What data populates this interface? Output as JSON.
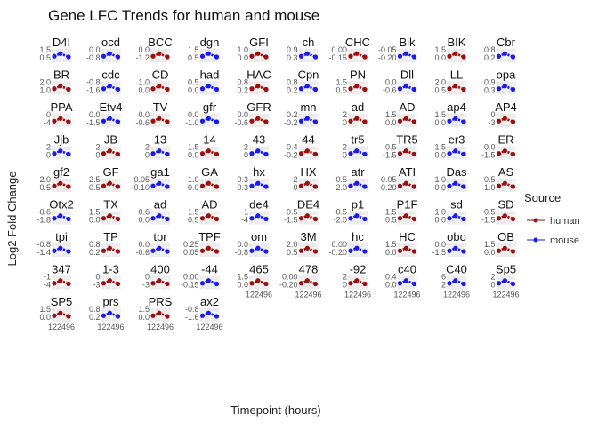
{
  "chart_data": {
    "type": "line",
    "title": "Gene LFC Trends for human and mouse",
    "xlabel": "Timepoint (hours)",
    "ylabel": "Log2 Fold Change",
    "legend": {
      "title": "Source",
      "placement": "right",
      "entries": [
        {
          "name": "human",
          "color": "#9b0f0f"
        },
        {
          "name": "mouse",
          "color": "#1a1aee"
        }
      ]
    },
    "x_ticks": [
      "12",
      "24",
      "96"
    ],
    "panels": [
      {
        "label": "D4I",
        "source": "mouse",
        "y_ticks": [
          "1.5",
          "0.5"
        ]
      },
      {
        "label": "ocd",
        "source": "mouse",
        "y_ticks": [
          "0.0",
          "-0.8"
        ]
      },
      {
        "label": "BCC",
        "source": "human",
        "y_ticks": [
          "0.0",
          "-1.2"
        ]
      },
      {
        "label": "dgn",
        "source": "mouse",
        "y_ticks": [
          "1.5",
          "0.5"
        ]
      },
      {
        "label": "GFI",
        "source": "human",
        "y_ticks": [
          "1.0",
          "0.0"
        ]
      },
      {
        "label": "ch",
        "source": "mouse",
        "y_ticks": [
          "0.9",
          "0.3"
        ]
      },
      {
        "label": "CHC",
        "source": "human",
        "y_ticks": [
          "0.00",
          "-0.15"
        ]
      },
      {
        "label": "Bik",
        "source": "mouse",
        "y_ticks": [
          "-0.05",
          "-0.20"
        ]
      },
      {
        "label": "BIK",
        "source": "human",
        "y_ticks": [
          "1.5",
          "0.0"
        ]
      },
      {
        "label": "Cbr",
        "source": "mouse",
        "y_ticks": [
          "0.8",
          "0.2"
        ]
      },
      {
        "label": "BR",
        "source": "human",
        "y_ticks": [
          "2.0",
          "1.0"
        ]
      },
      {
        "label": "cdc",
        "source": "mouse",
        "y_ticks": [
          "-0.8",
          "-1.6"
        ]
      },
      {
        "label": "CD",
        "source": "human",
        "y_ticks": [
          "1.0",
          "0.0"
        ]
      },
      {
        "label": "had",
        "source": "mouse",
        "y_ticks": [
          "0.5",
          "0.0"
        ]
      },
      {
        "label": "HAC",
        "source": "human",
        "y_ticks": [
          "0.8",
          "0.2"
        ]
      },
      {
        "label": "Cpn",
        "source": "mouse",
        "y_ticks": [
          "0.8",
          "0.2"
        ]
      },
      {
        "label": "PN",
        "source": "human",
        "y_ticks": [
          "1.5",
          "0.5"
        ]
      },
      {
        "label": "Dll",
        "source": "mouse",
        "y_ticks": [
          "0.0",
          "-0.6"
        ]
      },
      {
        "label": "LL",
        "source": "human",
        "y_ticks": [
          "2.0",
          "0.5"
        ]
      },
      {
        "label": "opa",
        "source": "mouse",
        "y_ticks": [
          "0.9",
          "0.3"
        ]
      },
      {
        "label": "PPA",
        "source": "human",
        "y_ticks": [
          "0",
          "-4"
        ]
      },
      {
        "label": "Etv4",
        "source": "mouse",
        "y_ticks": [
          "0.0",
          "-1.5"
        ]
      },
      {
        "label": "TV",
        "source": "human",
        "y_ticks": [
          "0.0",
          "-0.6"
        ]
      },
      {
        "label": "gfr",
        "source": "mouse",
        "y_ticks": [
          "0.0",
          "-1.0"
        ]
      },
      {
        "label": "GFR",
        "source": "human",
        "y_ticks": [
          "0.0",
          "-0.6"
        ]
      },
      {
        "label": "mn",
        "source": "mouse",
        "y_ticks": [
          "0.2",
          "-0.2"
        ]
      },
      {
        "label": "ad",
        "source": "human",
        "y_ticks": [
          "2",
          "0"
        ]
      },
      {
        "label": "AD",
        "source": "human",
        "y_ticks": [
          "1.5",
          "0.0"
        ]
      },
      {
        "label": "ap4",
        "source": "mouse",
        "y_ticks": [
          "1.5",
          "0.0"
        ]
      },
      {
        "label": "AP4",
        "source": "human",
        "y_ticks": [
          "0",
          "-3"
        ]
      },
      {
        "label": "Jjb",
        "source": "mouse",
        "y_ticks": [
          "2",
          "0"
        ]
      },
      {
        "label": "JB",
        "source": "human",
        "y_ticks": [
          "2",
          "0"
        ]
      },
      {
        "label": "13",
        "source": "mouse",
        "y_ticks": [
          "2",
          "0"
        ]
      },
      {
        "label": "14",
        "source": "human",
        "y_ticks": [
          "1.5",
          "0.0"
        ]
      },
      {
        "label": "43",
        "source": "mouse",
        "y_ticks": [
          "2",
          "0"
        ]
      },
      {
        "label": "44",
        "source": "human",
        "y_ticks": [
          "0.4",
          "-0.2"
        ]
      },
      {
        "label": "tr5",
        "source": "mouse",
        "y_ticks": [
          "2",
          "0"
        ]
      },
      {
        "label": "TR5",
        "source": "human",
        "y_ticks": [
          "0.5",
          "-1.5"
        ]
      },
      {
        "label": "er3",
        "source": "mouse",
        "y_ticks": [
          "1.5",
          "0.0"
        ]
      },
      {
        "label": "ER",
        "source": "human",
        "y_ticks": [
          "0.0",
          "-1.5"
        ]
      },
      {
        "label": "gf2",
        "source": "human",
        "y_ticks": [
          "2.0",
          "0.5"
        ]
      },
      {
        "label": "GF",
        "source": "human",
        "y_ticks": [
          "2.5",
          "0.5"
        ]
      },
      {
        "label": "ga1",
        "source": "mouse",
        "y_ticks": [
          "0.05",
          "-0.10"
        ]
      },
      {
        "label": "GA",
        "source": "human",
        "y_ticks": [
          "1.0",
          "0.0"
        ]
      },
      {
        "label": "hx",
        "source": "mouse",
        "y_ticks": [
          "0.3",
          "-0.3"
        ]
      },
      {
        "label": "HX",
        "source": "human",
        "y_ticks": [
          "2",
          "0"
        ]
      },
      {
        "label": "atr",
        "source": "mouse",
        "y_ticks": [
          "-0.5",
          "-2.0"
        ]
      },
      {
        "label": "ATI",
        "source": "human",
        "y_ticks": [
          "0.05",
          "-0.20"
        ]
      },
      {
        "label": "Das",
        "source": "mouse",
        "y_ticks": [
          "1.0",
          "0.0"
        ]
      },
      {
        "label": "AS",
        "source": "human",
        "y_ticks": [
          "0.5",
          "-1.0"
        ]
      },
      {
        "label": "Otx2",
        "source": "mouse",
        "y_ticks": [
          "-0.6",
          "-1.8"
        ]
      },
      {
        "label": "TX",
        "source": "human",
        "y_ticks": [
          "1.5",
          "0.0"
        ]
      },
      {
        "label": "ad",
        "source": "mouse",
        "y_ticks": [
          "0.6",
          "0.0"
        ]
      },
      {
        "label": "AD",
        "source": "human",
        "y_ticks": [
          "1.5",
          "0.5"
        ]
      },
      {
        "label": "de4",
        "source": "mouse",
        "y_ticks": [
          "-1",
          "-4"
        ]
      },
      {
        "label": "DE4",
        "source": "human",
        "y_ticks": [
          "0.5",
          "-1.5"
        ]
      },
      {
        "label": "p1",
        "source": "mouse",
        "y_ticks": [
          "-0.5",
          "-2.0"
        ]
      },
      {
        "label": "P1F",
        "source": "human",
        "y_ticks": [
          "1.5",
          "0.5"
        ]
      },
      {
        "label": "sd",
        "source": "mouse",
        "y_ticks": [
          "1.0",
          "0.0"
        ]
      },
      {
        "label": "SD",
        "source": "human",
        "y_ticks": [
          "0.5",
          "-1.5"
        ]
      },
      {
        "label": "tpi",
        "source": "mouse",
        "y_ticks": [
          "-0.8",
          "-1.4"
        ]
      },
      {
        "label": "TP",
        "source": "human",
        "y_ticks": [
          "0.8",
          "0.2"
        ]
      },
      {
        "label": "tpr",
        "source": "mouse",
        "y_ticks": [
          "0.0",
          "-0.6"
        ]
      },
      {
        "label": "TPF",
        "source": "human",
        "y_ticks": [
          "0.25",
          "0.05"
        ]
      },
      {
        "label": "om",
        "source": "mouse",
        "y_ticks": [
          "0.0",
          "-0.8"
        ]
      },
      {
        "label": "3M",
        "source": "human",
        "y_ticks": [
          "2.0",
          "0.5"
        ]
      },
      {
        "label": "hc",
        "source": "mouse",
        "y_ticks": [
          "0.00",
          "-0.20"
        ]
      },
      {
        "label": "HC",
        "source": "human",
        "y_ticks": [
          "1.5",
          "0.0"
        ]
      },
      {
        "label": "obo",
        "source": "mouse",
        "y_ticks": [
          "0.0",
          "-1.5"
        ]
      },
      {
        "label": "OB",
        "source": "human",
        "y_ticks": [
          "1.5",
          "0.0"
        ]
      },
      {
        "label": "347",
        "source": "human",
        "y_ticks": [
          "-1",
          "-4"
        ]
      },
      {
        "label": "1-3",
        "source": "human",
        "y_ticks": [
          "0",
          "-3"
        ]
      },
      {
        "label": "400",
        "source": "human",
        "y_ticks": [
          "0",
          "-3"
        ]
      },
      {
        "label": "-44",
        "source": "mouse",
        "y_ticks": [
          "0.00",
          "-0.15"
        ]
      },
      {
        "label": "465",
        "source": "human",
        "y_ticks": [
          "1.5",
          "0.0"
        ]
      },
      {
        "label": "478",
        "source": "human",
        "y_ticks": [
          "0.00",
          "-0.20"
        ]
      },
      {
        "label": "-92",
        "source": "human",
        "y_ticks": [
          "2",
          "0"
        ]
      },
      {
        "label": "c40",
        "source": "mouse",
        "y_ticks": [
          "0.4",
          "0.0"
        ]
      },
      {
        "label": "C40",
        "source": "mouse",
        "y_ticks": [
          "6",
          "2"
        ]
      },
      {
        "label": "Sp5",
        "source": "mouse",
        "y_ticks": [
          "2",
          "0"
        ]
      },
      {
        "label": "SP5",
        "source": "human",
        "y_ticks": [
          "1.5",
          "0.0"
        ]
      },
      {
        "label": "prs",
        "source": "mouse",
        "y_ticks": [
          "0.8",
          "0.2"
        ]
      },
      {
        "label": "PRS",
        "source": "human",
        "y_ticks": [
          "1.5",
          "0.0"
        ]
      },
      {
        "label": "ax2",
        "source": "mouse",
        "y_ticks": [
          "-0.8",
          "-1.6"
        ]
      }
    ]
  }
}
